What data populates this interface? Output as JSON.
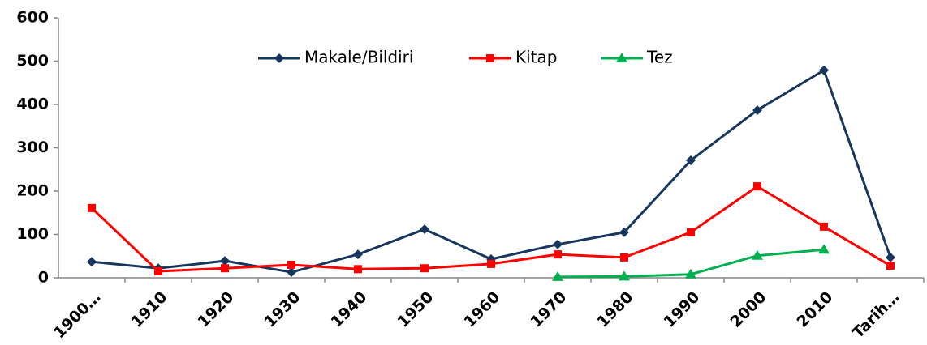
{
  "chart_data": {
    "type": "line",
    "categories": [
      "1900…",
      "1910",
      "1920",
      "1930",
      "1940",
      "1950",
      "1960",
      "1970",
      "1980",
      "1990",
      "2000",
      "2010",
      "Tarih…"
    ],
    "series": [
      {
        "name": "Makale/Bildiri",
        "color": "#17375e",
        "marker": "diamond",
        "values": [
          37,
          22,
          39,
          13,
          54,
          112,
          43,
          77,
          105,
          271,
          387,
          479,
          47
        ]
      },
      {
        "name": "Kitap",
        "color": "#ff0000",
        "marker": "square",
        "values": [
          161,
          15,
          22,
          30,
          20,
          22,
          32,
          54,
          47,
          105,
          211,
          118,
          28
        ]
      },
      {
        "name": "Tez",
        "color": "#00b050",
        "marker": "triangle",
        "values": [
          null,
          null,
          null,
          null,
          null,
          null,
          null,
          2,
          3,
          8,
          51,
          65,
          null
        ]
      }
    ],
    "ylim": [
      0,
      600
    ],
    "yticks": [
      0,
      100,
      200,
      300,
      400,
      500,
      600
    ],
    "grid": false,
    "legend": "top"
  }
}
